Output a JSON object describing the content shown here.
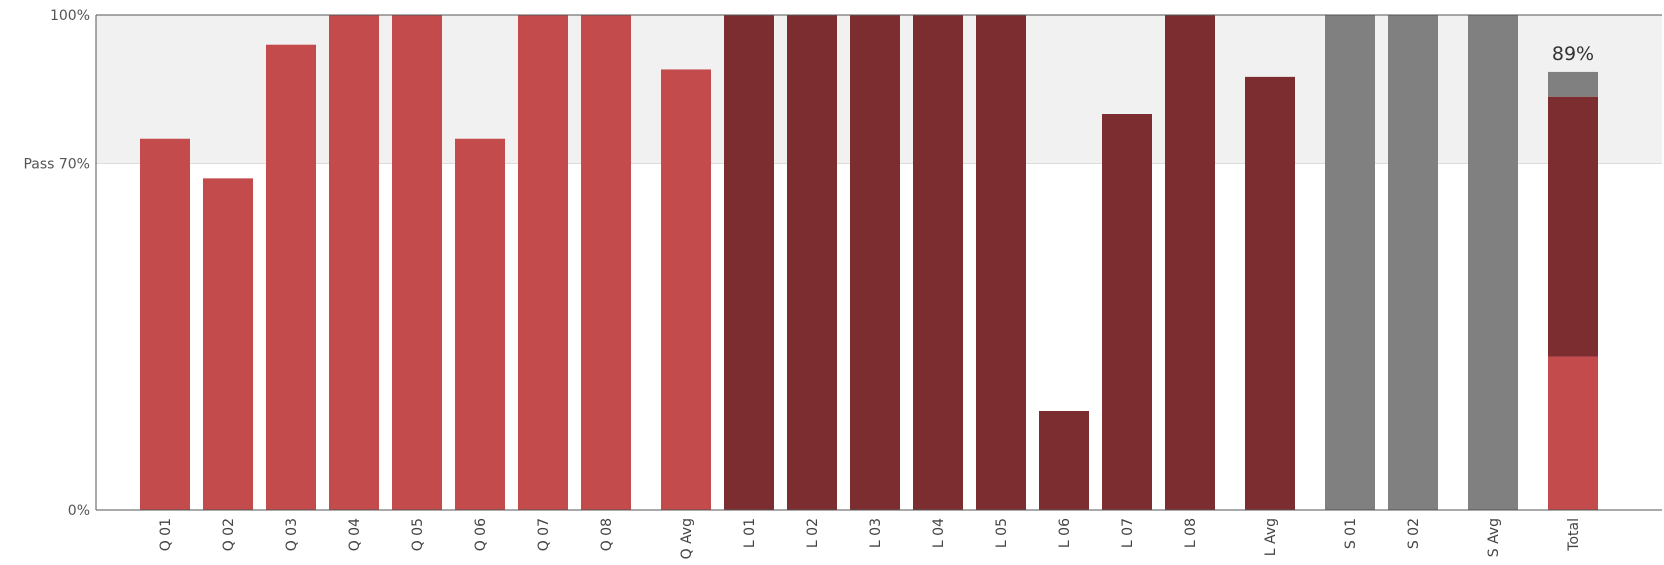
{
  "chart_data": {
    "type": "bar",
    "yticks": [
      {
        "value": 100,
        "label": "100%"
      },
      {
        "value": 70,
        "label": "Pass 70%"
      },
      {
        "value": 0,
        "label": "0%"
      }
    ],
    "ylim": [
      0,
      100
    ],
    "pass_threshold": 70,
    "colors": {
      "Q": "#c44b4c",
      "L": "#7c2d2f",
      "S": "#808080",
      "pass_band": "#f1f1f1"
    },
    "bars": [
      {
        "label": "Q 01",
        "value": 75,
        "group": "Q"
      },
      {
        "label": "Q 02",
        "value": 67,
        "group": "Q"
      },
      {
        "label": "Q 03",
        "value": 94,
        "group": "Q"
      },
      {
        "label": "Q 04",
        "value": 100,
        "group": "Q"
      },
      {
        "label": "Q 05",
        "value": 100,
        "group": "Q"
      },
      {
        "label": "Q 06",
        "value": 75,
        "group": "Q"
      },
      {
        "label": "Q 07",
        "value": 100,
        "group": "Q"
      },
      {
        "label": "Q 08",
        "value": 100,
        "group": "Q"
      },
      {
        "label": "Q Avg",
        "value": 89,
        "group": "Q",
        "gap_before": true
      },
      {
        "label": "L 01",
        "value": 100,
        "group": "L"
      },
      {
        "label": "L 02",
        "value": 100,
        "group": "L"
      },
      {
        "label": "L 03",
        "value": 100,
        "group": "L"
      },
      {
        "label": "L 04",
        "value": 100,
        "group": "L"
      },
      {
        "label": "L 05",
        "value": 100,
        "group": "L"
      },
      {
        "label": "L 06",
        "value": 20,
        "group": "L"
      },
      {
        "label": "L 07",
        "value": 80,
        "group": "L"
      },
      {
        "label": "L 08",
        "value": 100,
        "group": "L"
      },
      {
        "label": "L Avg",
        "value": 87.5,
        "group": "L",
        "gap_before": true
      },
      {
        "label": "S 01",
        "value": 100,
        "group": "S",
        "gap_before": true
      },
      {
        "label": "S 02",
        "value": 100,
        "group": "S"
      },
      {
        "label": "S Avg",
        "value": 100,
        "group": "S",
        "gap_before": true
      }
    ],
    "total": {
      "label": "Total",
      "value_label": "89%",
      "segments": [
        {
          "group": "Q",
          "value": 31
        },
        {
          "group": "L",
          "value": 52.5
        },
        {
          "group": "S",
          "value": 5
        }
      ]
    }
  }
}
